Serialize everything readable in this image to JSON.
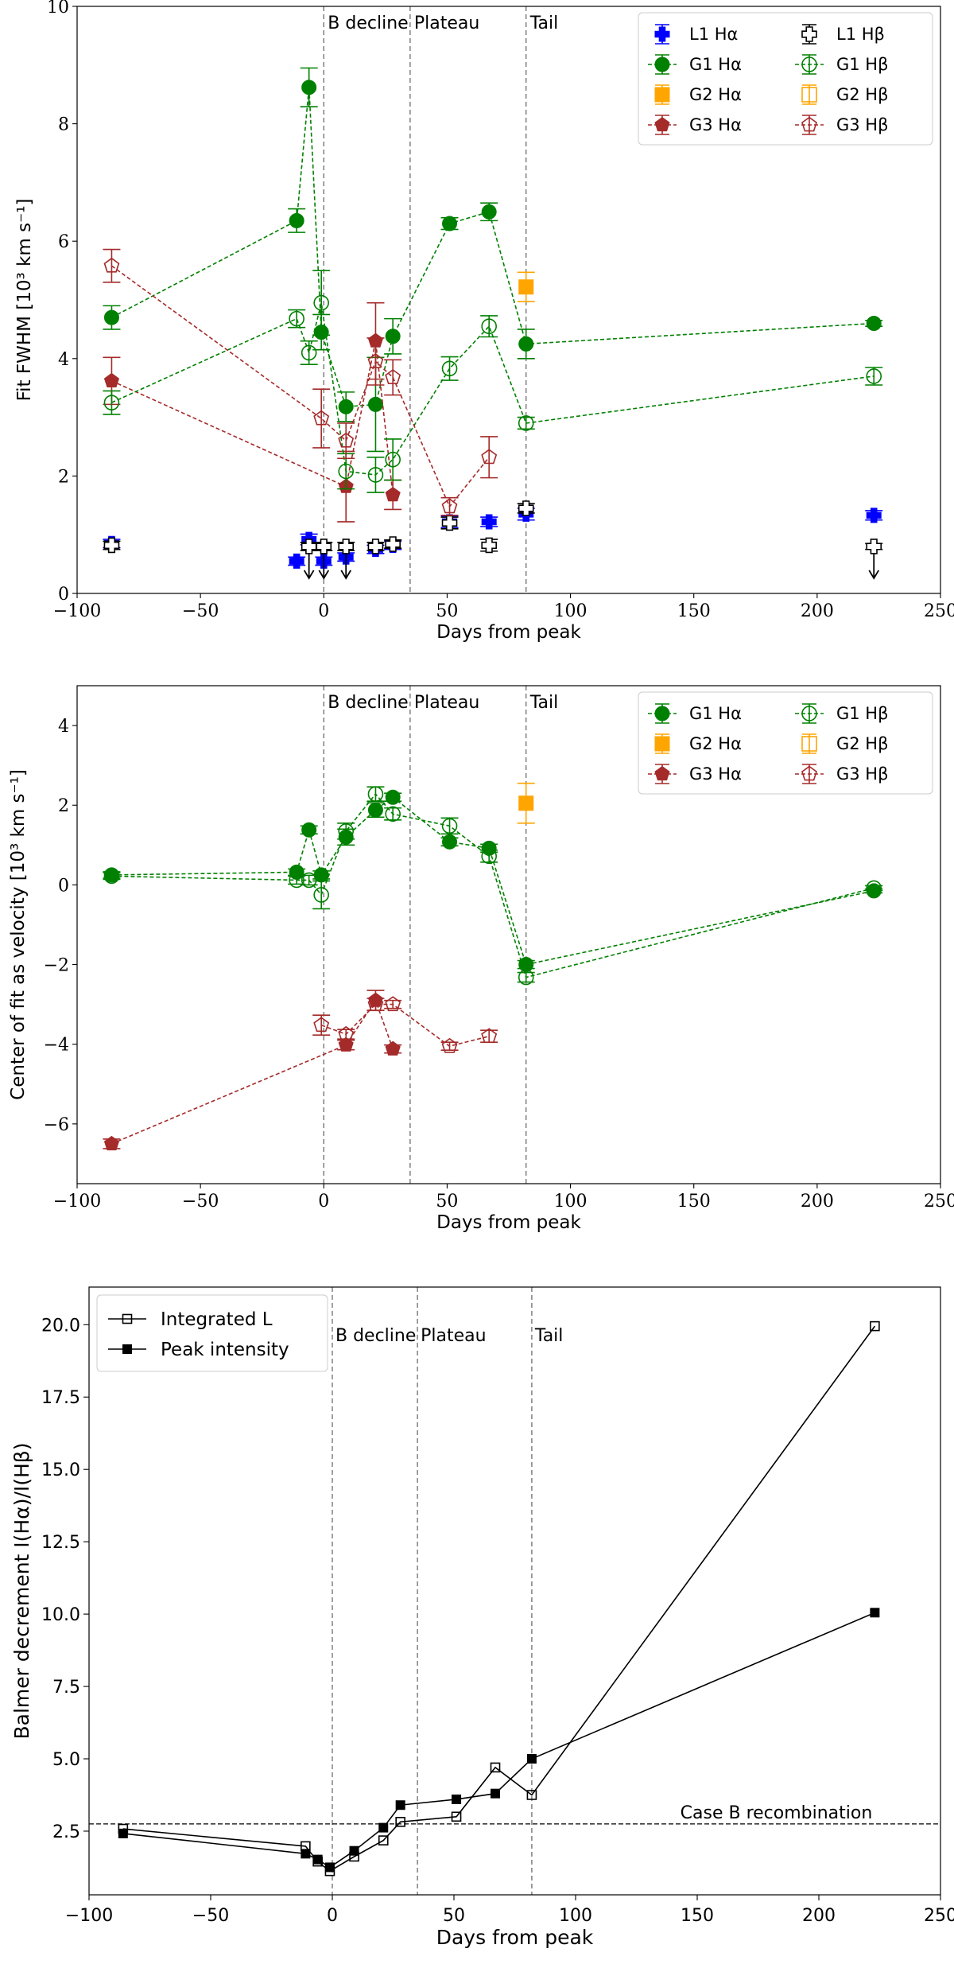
{
  "chart_data": [
    {
      "type": "scatter",
      "xlabel": "Days from peak",
      "ylabel": "Fit FWHM [10³ km s⁻¹]",
      "xlim": [
        -100,
        250
      ],
      "ylim": [
        0,
        10
      ],
      "xticks": [
        -100,
        -50,
        0,
        50,
        100,
        150,
        200,
        250
      ],
      "xtick_labels": [
        "−100",
        "−50",
        "0",
        "50",
        "100",
        "150",
        "200",
        "250"
      ],
      "yticks": [
        0,
        2,
        4,
        6,
        8,
        10
      ],
      "ytick_labels": [
        "0",
        "2",
        "4",
        "6",
        "8",
        "10"
      ],
      "phase_lines": [
        0,
        35,
        82
      ],
      "phase_labels": [
        {
          "x": 0,
          "text": "B decline"
        },
        {
          "x": 35,
          "text": "Plateau"
        },
        {
          "x": 82,
          "text": "Tail"
        }
      ],
      "legend_placement": "upper right",
      "series": [
        {
          "name": "L1 Hα",
          "line": "Hα",
          "label": "L1",
          "color": "#0000ff",
          "marker": "plus",
          "filled": true,
          "connected": false,
          "x": [
            -86,
            -11,
            -6,
            0,
            9,
            21,
            28,
            51,
            67,
            82,
            223
          ],
          "y": [
            0.85,
            0.55,
            0.92,
            0.55,
            0.62,
            0.75,
            0.82,
            1.22,
            1.22,
            1.35,
            1.33
          ],
          "err": [
            0.07,
            0.07,
            0.09,
            0.07,
            0.07,
            0.07,
            0.07,
            0.1,
            0.08,
            0.1,
            0.08
          ]
        },
        {
          "name": "G1 Hα",
          "line": "Hα",
          "label": "G1",
          "color": "#008000",
          "marker": "circle",
          "filled": true,
          "connected": true,
          "x": [
            -86,
            -11,
            -6,
            -1,
            9,
            21,
            28,
            51,
            67,
            82,
            223
          ],
          "y": [
            4.7,
            6.35,
            8.62,
            4.45,
            3.18,
            3.22,
            4.38,
            6.3,
            6.5,
            4.25,
            4.6
          ],
          "err": [
            0.2,
            0.2,
            0.33,
            0.3,
            0.25,
            0.8,
            0.3,
            0.1,
            0.15,
            0.25,
            0.05
          ]
        },
        {
          "name": "G2 Hα",
          "line": "Hα",
          "label": "G2",
          "color": "#ffa500",
          "marker": "square",
          "filled": true,
          "connected": false,
          "x": [
            82
          ],
          "y": [
            5.22
          ],
          "err": [
            0.25
          ]
        },
        {
          "name": "G3 Hα",
          "line": "Hα",
          "label": "G3",
          "color": "#a52a2a",
          "marker": "pentagon",
          "filled": true,
          "connected": true,
          "x": [
            -86,
            9,
            21,
            28
          ],
          "y": [
            3.62,
            1.82,
            4.3,
            1.68
          ],
          "err": [
            0.4,
            0.6,
            0.65,
            0.25
          ]
        },
        {
          "name": "L1 Hβ",
          "line": "Hβ",
          "label": "L1",
          "color": "#000000",
          "marker": "plus",
          "filled": false,
          "connected": false,
          "x": [
            -86,
            -6,
            0,
            9,
            21,
            28,
            51,
            67,
            82,
            223
          ],
          "y": [
            0.82,
            0.8,
            0.8,
            0.8,
            0.8,
            0.84,
            1.2,
            0.82,
            1.45,
            0.8
          ],
          "err": [
            0.07,
            0.07,
            0.07,
            0.07,
            0.07,
            0.07,
            0.1,
            0.1,
            0.08,
            0.05
          ],
          "upper_limits": [
            false,
            true,
            true,
            true,
            false,
            false,
            false,
            false,
            false,
            true
          ]
        },
        {
          "name": "G1 Hβ",
          "line": "Hβ",
          "label": "G1",
          "color": "#008000",
          "marker": "circle",
          "filled": false,
          "connected": true,
          "x": [
            -86,
            -11,
            -6,
            -1,
            9,
            21,
            28,
            51,
            67,
            82,
            223
          ],
          "y": [
            3.25,
            4.68,
            4.1,
            4.95,
            2.08,
            2.02,
            2.28,
            3.83,
            4.55,
            2.9,
            3.7
          ],
          "err": [
            0.2,
            0.15,
            0.2,
            0.55,
            0.3,
            0.3,
            0.35,
            0.2,
            0.18,
            0.1,
            0.15
          ]
        },
        {
          "name": "G2 Hβ",
          "line": "Hβ",
          "label": "G2",
          "color": "#ffa500",
          "marker": "square",
          "filled": false,
          "connected": false,
          "x": [],
          "y": [],
          "err": []
        },
        {
          "name": "G3 Hβ",
          "line": "Hβ",
          "label": "G3",
          "color": "#a52a2a",
          "marker": "pentagon",
          "filled": false,
          "connected": true,
          "x": [
            -86,
            -1,
            9,
            21,
            28,
            51,
            67
          ],
          "y": [
            5.58,
            2.98,
            2.6,
            3.95,
            3.68,
            1.48,
            2.32
          ],
          "err": [
            0.28,
            0.5,
            0.3,
            0.4,
            0.3,
            0.15,
            0.35
          ]
        }
      ]
    },
    {
      "type": "scatter",
      "xlabel": "Days from peak",
      "ylabel": "Center of fit as velocity [10³ km s⁻¹]",
      "xlim": [
        -100,
        250
      ],
      "ylim": [
        -7.5,
        5
      ],
      "xticks": [
        -100,
        -50,
        0,
        50,
        100,
        150,
        200,
        250
      ],
      "xtick_labels": [
        "−100",
        "−50",
        "0",
        "50",
        "100",
        "150",
        "200",
        "250"
      ],
      "yticks": [
        -6,
        -4,
        -2,
        0,
        2,
        4
      ],
      "ytick_labels": [
        "−6",
        "−4",
        "−2",
        "0",
        "2",
        "4"
      ],
      "phase_lines": [
        0,
        35,
        82
      ],
      "phase_labels": [
        {
          "x": 0,
          "text": "B decline"
        },
        {
          "x": 35,
          "text": "Plateau"
        },
        {
          "x": 82,
          "text": "Tail"
        }
      ],
      "legend_placement": "upper right",
      "series": [
        {
          "name": "G1 Hα",
          "line": "Hα",
          "label": "G1",
          "color": "#008000",
          "marker": "circle",
          "filled": true,
          "connected": true,
          "x": [
            -86,
            -11,
            -6,
            -1,
            9,
            21,
            28,
            51,
            67,
            82,
            223
          ],
          "y": [
            0.25,
            0.32,
            1.38,
            0.25,
            1.2,
            1.88,
            2.2,
            1.08,
            0.92,
            -2.0,
            -0.15
          ],
          "err": [
            0.08,
            0.08,
            0.1,
            0.1,
            0.2,
            0.18,
            0.1,
            0.1,
            0.1,
            0.1,
            0.05
          ]
        },
        {
          "name": "G2 Hα",
          "line": "Hα",
          "label": "G2",
          "color": "#ffa500",
          "marker": "square",
          "filled": true,
          "connected": false,
          "x": [
            82
          ],
          "y": [
            2.05
          ],
          "err": [
            0.5
          ]
        },
        {
          "name": "G3 Hα",
          "line": "Hα",
          "label": "G3",
          "color": "#a52a2a",
          "marker": "pentagon",
          "filled": true,
          "connected": true,
          "x": [
            -86,
            9,
            21,
            28
          ],
          "y": [
            -6.5,
            -4.02,
            -2.9,
            -4.12
          ],
          "err": [
            0.12,
            0.12,
            0.25,
            0.1
          ]
        },
        {
          "name": "G1 Hβ",
          "line": "Hβ",
          "label": "G1",
          "color": "#008000",
          "marker": "circle",
          "filled": false,
          "connected": true,
          "x": [
            -86,
            -11,
            -6,
            -1,
            9,
            21,
            28,
            51,
            67,
            82,
            223
          ],
          "y": [
            0.22,
            0.12,
            0.12,
            -0.25,
            1.35,
            2.28,
            1.78,
            1.48,
            0.72,
            -2.32,
            -0.08
          ],
          "err": [
            0.08,
            0.1,
            0.12,
            0.35,
            0.2,
            0.18,
            0.15,
            0.2,
            0.15,
            0.12,
            0.06
          ]
        },
        {
          "name": "G2 Hβ",
          "line": "Hβ",
          "label": "G2",
          "color": "#ffa500",
          "marker": "square",
          "filled": false,
          "connected": false,
          "x": [],
          "y": [],
          "err": []
        },
        {
          "name": "G3 Hβ",
          "line": "Hβ",
          "label": "G3",
          "color": "#a52a2a",
          "marker": "pentagon",
          "filled": false,
          "connected": true,
          "x": [
            -1,
            9,
            21,
            28,
            51,
            67
          ],
          "y": [
            -3.52,
            -3.75,
            -3.0,
            -3.0,
            -4.05,
            -3.8
          ],
          "err": [
            0.25,
            0.12,
            0.15,
            0.1,
            0.1,
            0.15
          ]
        }
      ]
    },
    {
      "type": "line",
      "xlabel": "Days from peak",
      "ylabel": "Balmer decrement I(Hα)/I(Hβ)",
      "xlim": [
        -100,
        250
      ],
      "ylim": [
        0.3,
        21.3
      ],
      "xticks": [
        -100,
        -50,
        0,
        50,
        100,
        150,
        200,
        250
      ],
      "xtick_labels": [
        "−100",
        "−50",
        "0",
        "50",
        "100",
        "150",
        "200",
        "250"
      ],
      "yticks": [
        2.5,
        5.0,
        7.5,
        10.0,
        12.5,
        15.0,
        17.5,
        20.0
      ],
      "ytick_labels": [
        "2.5",
        "5.0",
        "7.5",
        "10.0",
        "12.5",
        "15.0",
        "17.5",
        "20.0"
      ],
      "phase_lines": [
        0,
        35,
        82
      ],
      "phase_labels": [
        {
          "x": 0,
          "text": "B decline"
        },
        {
          "x": 35,
          "text": "Plateau"
        },
        {
          "x": 82,
          "text": "Tail"
        }
      ],
      "reference_line": {
        "y": 2.75,
        "label": "Case B recombination"
      },
      "legend_placement": "upper left",
      "series": [
        {
          "name": "Integrated L",
          "color": "#000000",
          "marker": "square",
          "filled": false,
          "x": [
            -86,
            -11,
            -6,
            -1,
            9,
            21,
            28,
            51,
            67,
            82,
            223
          ],
          "y": [
            2.58,
            1.98,
            1.45,
            1.12,
            1.62,
            2.18,
            2.82,
            3.0,
            4.7,
            3.75,
            19.95
          ]
        },
        {
          "name": "Peak intensity",
          "color": "#000000",
          "marker": "square",
          "filled": true,
          "x": [
            -86,
            -11,
            -6,
            -1,
            9,
            21,
            28,
            51,
            67,
            82,
            223
          ],
          "y": [
            2.42,
            1.72,
            1.52,
            1.25,
            1.82,
            2.62,
            3.4,
            3.6,
            3.8,
            5.0,
            10.05
          ]
        }
      ]
    }
  ]
}
